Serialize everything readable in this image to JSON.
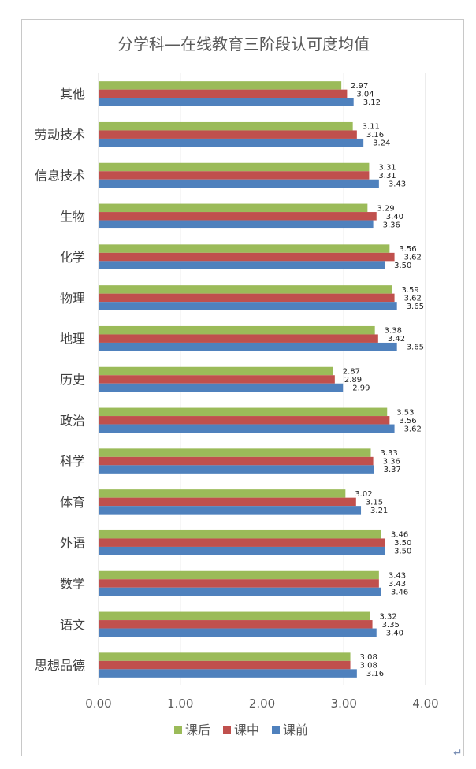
{
  "chart_data": {
    "type": "bar",
    "orientation": "horizontal",
    "title": "分学科—在线教育三阶段认可度均值",
    "categories": [
      "其他",
      "劳动技术",
      "信息技术",
      "生物",
      "化学",
      "物理",
      "地理",
      "历史",
      "政治",
      "科学",
      "体育",
      "外语",
      "数学",
      "语文",
      "思想品德"
    ],
    "series": [
      {
        "name": "课后",
        "color": "#9bbb59",
        "values": [
          2.97,
          3.11,
          3.31,
          3.29,
          3.56,
          3.59,
          3.38,
          2.87,
          3.53,
          3.33,
          3.02,
          3.46,
          3.43,
          3.32,
          3.08
        ],
        "labels": [
          "2.97",
          "3.11",
          "3.31",
          "3.29",
          "3.56",
          "3.59",
          "3.38",
          "2.87",
          "3.53",
          "3.33",
          "3.02",
          "3.46",
          "3.43",
          "3.32",
          "3.08"
        ]
      },
      {
        "name": "课中",
        "color": "#c0504d",
        "values": [
          3.04,
          3.16,
          3.31,
          3.4,
          3.62,
          3.62,
          3.42,
          2.89,
          3.56,
          3.36,
          3.15,
          3.5,
          3.43,
          3.35,
          3.08
        ],
        "labels": [
          "3.04",
          "3.16",
          "3.31",
          "3.40",
          "3.62",
          "3.62",
          "3.42",
          "2.89",
          "3.56",
          "3.36",
          "3.15",
          "3.50",
          "3.43",
          "3.35",
          "3.08"
        ]
      },
      {
        "name": "课前",
        "color": "#4f81bd",
        "values": [
          3.12,
          3.24,
          3.43,
          3.36,
          3.5,
          3.65,
          3.65,
          2.99,
          3.62,
          3.37,
          3.21,
          3.5,
          3.46,
          3.4,
          3.16
        ],
        "labels": [
          "3.12",
          "3.24",
          "3.43",
          "3.36",
          "3.50",
          "3.65",
          "3.65",
          "2.99",
          "3.62",
          "3.37",
          "3.21",
          "3.50",
          "3.46",
          "3.40",
          "3.16"
        ]
      }
    ],
    "xlim": [
      0,
      4
    ],
    "xticks": [
      "0.00",
      "1.00",
      "2.00",
      "3.00",
      "4.00"
    ],
    "xtick_values": [
      0,
      1,
      2,
      3,
      4
    ],
    "grid": true,
    "legend": "bottom"
  },
  "paragraph_mark": "↵"
}
